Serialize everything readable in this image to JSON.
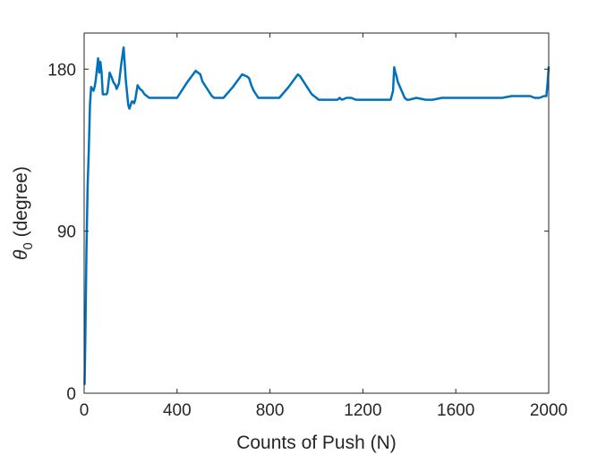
{
  "chart_data": {
    "type": "line",
    "title": "",
    "xlabel": "Counts of Push (N)",
    "ylabel_symbol": "θ",
    "ylabel_subscript": "0",
    "ylabel_unit": " (degree)",
    "xlim": [
      0,
      2000
    ],
    "ylim": [
      0,
      200
    ],
    "xticks": [
      0,
      400,
      800,
      1200,
      1600,
      2000
    ],
    "yticks": [
      0,
      90,
      180
    ],
    "grid": false,
    "legend": "none",
    "line_color": "#0072BD",
    "series": [
      {
        "x": [
          2,
          5,
          10,
          15,
          20,
          25,
          30,
          35,
          40,
          45,
          50,
          55,
          60,
          65,
          70,
          75,
          80,
          85,
          88,
          92,
          96,
          100,
          110,
          120,
          125,
          130,
          135,
          140,
          150,
          160,
          170,
          180,
          190,
          195,
          200,
          205,
          210,
          215,
          220,
          225,
          230,
          240,
          250,
          260,
          270,
          280,
          290,
          300,
          320,
          340,
          360,
          380,
          400,
          440,
          480,
          500,
          505,
          510,
          515,
          520,
          530,
          540,
          550,
          560,
          570,
          580,
          600,
          640,
          680,
          700,
          710,
          715,
          720,
          730,
          740,
          750,
          760,
          770,
          780,
          800,
          840,
          880,
          920,
          930,
          940,
          950,
          960,
          970,
          980,
          990,
          1000,
          1010,
          1030,
          1060,
          1090,
          1100,
          1110,
          1130,
          1150,
          1170,
          1200,
          1240,
          1280,
          1320,
          1330,
          1335,
          1340,
          1345,
          1350,
          1360,
          1370,
          1380,
          1390,
          1400,
          1430,
          1470,
          1500,
          1540,
          1580,
          1600,
          1640,
          1680,
          1720,
          1760,
          1800,
          1840,
          1880,
          1920,
          1940,
          1960,
          1980,
          1990,
          1995,
          2000
        ],
        "values": [
          5,
          30,
          80,
          115,
          135,
          160,
          170,
          169,
          168,
          170,
          174,
          180,
          186,
          178,
          184,
          178,
          166,
          166,
          166,
          166,
          166,
          167,
          178,
          175,
          173,
          172,
          171,
          169,
          172,
          183,
          192,
          173,
          160,
          158,
          160,
          162,
          162,
          161,
          163,
          167,
          171,
          169,
          168,
          166,
          165,
          164,
          164,
          164,
          164,
          164,
          164,
          164,
          164,
          172,
          179,
          177,
          175,
          173,
          172,
          171,
          169,
          167,
          165,
          164,
          164,
          164,
          164,
          170,
          177,
          176,
          175,
          173,
          171,
          168,
          166,
          164,
          164,
          164,
          164,
          164,
          164,
          170,
          177,
          176,
          174,
          172,
          170,
          168,
          166,
          165,
          164,
          163,
          163,
          163,
          163,
          164,
          163,
          164,
          164,
          163,
          163,
          163,
          163,
          163,
          168,
          181,
          178,
          176,
          173,
          170,
          167,
          164,
          163,
          163,
          164,
          163,
          163,
          164,
          164,
          164,
          164,
          164,
          164,
          164,
          164,
          165,
          165,
          165,
          164,
          164,
          165,
          165,
          172,
          181
        ]
      }
    ]
  }
}
